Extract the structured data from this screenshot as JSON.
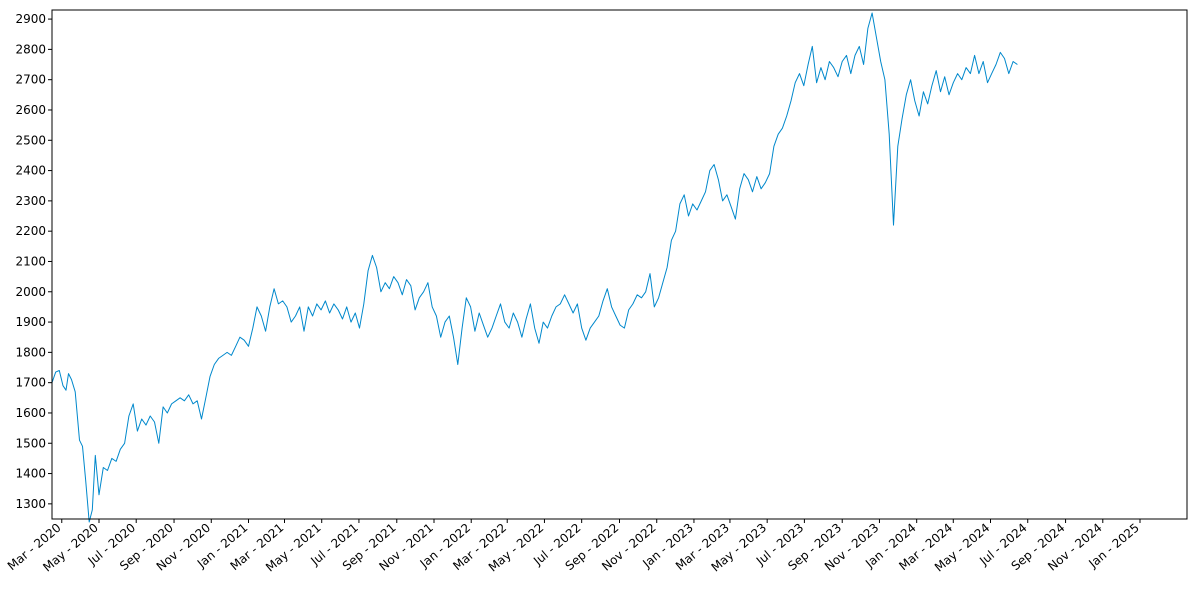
{
  "chart_data": {
    "type": "line",
    "title": "",
    "xlabel": "",
    "ylabel": "",
    "grid": false,
    "legend": "none",
    "line_color": "#0088cc",
    "xlim": [
      "2020-02-14",
      "2025-03-19"
    ],
    "ylim": [
      1250,
      2930
    ],
    "y_ticks": [
      1300,
      1400,
      1500,
      1600,
      1700,
      1800,
      1900,
      2000,
      2100,
      2200,
      2300,
      2400,
      2500,
      2600,
      2700,
      2800,
      2900
    ],
    "x_ticks": [
      {
        "date": "2020-03-01",
        "label": "Mar - 2020"
      },
      {
        "date": "2020-05-01",
        "label": "May - 2020"
      },
      {
        "date": "2020-07-01",
        "label": "Jul - 2020"
      },
      {
        "date": "2020-09-01",
        "label": "Sep - 2020"
      },
      {
        "date": "2020-11-01",
        "label": "Nov - 2020"
      },
      {
        "date": "2021-01-01",
        "label": "Jan - 2021"
      },
      {
        "date": "2021-03-01",
        "label": "Mar - 2021"
      },
      {
        "date": "2021-05-01",
        "label": "May - 2021"
      },
      {
        "date": "2021-07-01",
        "label": "Jul - 2021"
      },
      {
        "date": "2021-09-01",
        "label": "Sep - 2021"
      },
      {
        "date": "2021-11-01",
        "label": "Nov - 2021"
      },
      {
        "date": "2022-01-01",
        "label": "Jan - 2022"
      },
      {
        "date": "2022-03-01",
        "label": "Mar - 2022"
      },
      {
        "date": "2022-05-01",
        "label": "May - 2022"
      },
      {
        "date": "2022-07-01",
        "label": "Jul - 2022"
      },
      {
        "date": "2022-09-01",
        "label": "Sep - 2022"
      },
      {
        "date": "2022-11-01",
        "label": "Nov - 2022"
      },
      {
        "date": "2023-01-01",
        "label": "Jan - 2023"
      },
      {
        "date": "2023-03-01",
        "label": "Mar - 2023"
      },
      {
        "date": "2023-05-01",
        "label": "May - 2023"
      },
      {
        "date": "2023-07-01",
        "label": "Jul - 2023"
      },
      {
        "date": "2023-09-01",
        "label": "Sep - 2023"
      },
      {
        "date": "2023-11-01",
        "label": "Nov - 2023"
      },
      {
        "date": "2024-01-01",
        "label": "Jan - 2024"
      },
      {
        "date": "2024-03-01",
        "label": "Mar - 2024"
      },
      {
        "date": "2024-05-01",
        "label": "May - 2024"
      },
      {
        "date": "2024-07-01",
        "label": "Jul - 2024"
      },
      {
        "date": "2024-09-01",
        "label": "Sep - 2024"
      },
      {
        "date": "2024-11-01",
        "label": "Nov - 2024"
      },
      {
        "date": "2025-01-01",
        "label": "Jan - 2025"
      }
    ],
    "series": [
      {
        "points": [
          [
            "2020-02-14",
            1700
          ],
          [
            "2020-02-20",
            1735
          ],
          [
            "2020-02-26",
            1740
          ],
          [
            "2020-03-03",
            1690
          ],
          [
            "2020-03-08",
            1675
          ],
          [
            "2020-03-12",
            1730
          ],
          [
            "2020-03-17",
            1710
          ],
          [
            "2020-03-23",
            1670
          ],
          [
            "2020-03-30",
            1510
          ],
          [
            "2020-04-04",
            1490
          ],
          [
            "2020-04-09",
            1380
          ],
          [
            "2020-04-15",
            1240
          ],
          [
            "2020-04-20",
            1280
          ],
          [
            "2020-04-25",
            1460
          ],
          [
            "2020-05-01",
            1330
          ],
          [
            "2020-05-08",
            1420
          ],
          [
            "2020-05-15",
            1410
          ],
          [
            "2020-05-22",
            1450
          ],
          [
            "2020-05-29",
            1440
          ],
          [
            "2020-06-05",
            1480
          ],
          [
            "2020-06-12",
            1500
          ],
          [
            "2020-06-19",
            1590
          ],
          [
            "2020-06-26",
            1630
          ],
          [
            "2020-07-03",
            1540
          ],
          [
            "2020-07-10",
            1580
          ],
          [
            "2020-07-17",
            1560
          ],
          [
            "2020-07-24",
            1590
          ],
          [
            "2020-07-31",
            1570
          ],
          [
            "2020-08-07",
            1500
          ],
          [
            "2020-08-14",
            1620
          ],
          [
            "2020-08-21",
            1600
          ],
          [
            "2020-08-28",
            1630
          ],
          [
            "2020-09-04",
            1640
          ],
          [
            "2020-09-11",
            1650
          ],
          [
            "2020-09-18",
            1640
          ],
          [
            "2020-09-25",
            1660
          ],
          [
            "2020-10-02",
            1630
          ],
          [
            "2020-10-09",
            1640
          ],
          [
            "2020-10-16",
            1580
          ],
          [
            "2020-10-23",
            1650
          ],
          [
            "2020-10-30",
            1720
          ],
          [
            "2020-11-06",
            1760
          ],
          [
            "2020-11-13",
            1780
          ],
          [
            "2020-11-20",
            1790
          ],
          [
            "2020-11-27",
            1800
          ],
          [
            "2020-12-04",
            1790
          ],
          [
            "2020-12-11",
            1820
          ],
          [
            "2020-12-18",
            1850
          ],
          [
            "2020-12-25",
            1840
          ],
          [
            "2021-01-01",
            1820
          ],
          [
            "2021-01-08",
            1880
          ],
          [
            "2021-01-15",
            1950
          ],
          [
            "2021-01-22",
            1920
          ],
          [
            "2021-01-29",
            1870
          ],
          [
            "2021-02-05",
            1950
          ],
          [
            "2021-02-12",
            2010
          ],
          [
            "2021-02-19",
            1960
          ],
          [
            "2021-02-26",
            1970
          ],
          [
            "2021-03-05",
            1950
          ],
          [
            "2021-03-12",
            1900
          ],
          [
            "2021-03-19",
            1920
          ],
          [
            "2021-03-26",
            1950
          ],
          [
            "2021-04-02",
            1870
          ],
          [
            "2021-04-09",
            1950
          ],
          [
            "2021-04-16",
            1920
          ],
          [
            "2021-04-23",
            1960
          ],
          [
            "2021-04-30",
            1940
          ],
          [
            "2021-05-07",
            1970
          ],
          [
            "2021-05-14",
            1930
          ],
          [
            "2021-05-21",
            1960
          ],
          [
            "2021-05-28",
            1940
          ],
          [
            "2021-06-04",
            1910
          ],
          [
            "2021-06-11",
            1950
          ],
          [
            "2021-06-18",
            1900
          ],
          [
            "2021-06-25",
            1930
          ],
          [
            "2021-07-02",
            1880
          ],
          [
            "2021-07-09",
            1960
          ],
          [
            "2021-07-16",
            2070
          ],
          [
            "2021-07-23",
            2120
          ],
          [
            "2021-07-30",
            2080
          ],
          [
            "2021-08-06",
            2000
          ],
          [
            "2021-08-13",
            2030
          ],
          [
            "2021-08-20",
            2010
          ],
          [
            "2021-08-27",
            2050
          ],
          [
            "2021-09-03",
            2030
          ],
          [
            "2021-09-10",
            1990
          ],
          [
            "2021-09-17",
            2040
          ],
          [
            "2021-09-24",
            2020
          ],
          [
            "2021-10-01",
            1940
          ],
          [
            "2021-10-08",
            1980
          ],
          [
            "2021-10-15",
            2000
          ],
          [
            "2021-10-22",
            2030
          ],
          [
            "2021-10-29",
            1950
          ],
          [
            "2021-11-05",
            1920
          ],
          [
            "2021-11-12",
            1850
          ],
          [
            "2021-11-19",
            1900
          ],
          [
            "2021-11-26",
            1920
          ],
          [
            "2021-12-03",
            1850
          ],
          [
            "2021-12-10",
            1760
          ],
          [
            "2021-12-17",
            1880
          ],
          [
            "2021-12-24",
            1980
          ],
          [
            "2021-12-31",
            1950
          ],
          [
            "2022-01-07",
            1870
          ],
          [
            "2022-01-14",
            1930
          ],
          [
            "2022-01-21",
            1890
          ],
          [
            "2022-01-28",
            1850
          ],
          [
            "2022-02-04",
            1880
          ],
          [
            "2022-02-11",
            1920
          ],
          [
            "2022-02-18",
            1960
          ],
          [
            "2022-02-25",
            1900
          ],
          [
            "2022-03-04",
            1880
          ],
          [
            "2022-03-11",
            1930
          ],
          [
            "2022-03-18",
            1900
          ],
          [
            "2022-03-25",
            1850
          ],
          [
            "2022-04-01",
            1910
          ],
          [
            "2022-04-08",
            1960
          ],
          [
            "2022-04-15",
            1880
          ],
          [
            "2022-04-22",
            1830
          ],
          [
            "2022-04-29",
            1900
          ],
          [
            "2022-05-06",
            1880
          ],
          [
            "2022-05-13",
            1920
          ],
          [
            "2022-05-20",
            1950
          ],
          [
            "2022-05-27",
            1960
          ],
          [
            "2022-06-03",
            1990
          ],
          [
            "2022-06-10",
            1960
          ],
          [
            "2022-06-17",
            1930
          ],
          [
            "2022-06-24",
            1960
          ],
          [
            "2022-07-01",
            1880
          ],
          [
            "2022-07-08",
            1840
          ],
          [
            "2022-07-15",
            1880
          ],
          [
            "2022-07-22",
            1900
          ],
          [
            "2022-07-29",
            1920
          ],
          [
            "2022-08-05",
            1970
          ],
          [
            "2022-08-12",
            2010
          ],
          [
            "2022-08-19",
            1950
          ],
          [
            "2022-08-26",
            1920
          ],
          [
            "2022-09-02",
            1890
          ],
          [
            "2022-09-09",
            1880
          ],
          [
            "2022-09-16",
            1940
          ],
          [
            "2022-09-23",
            1960
          ],
          [
            "2022-09-30",
            1990
          ],
          [
            "2022-10-07",
            1980
          ],
          [
            "2022-10-14",
            2000
          ],
          [
            "2022-10-21",
            2060
          ],
          [
            "2022-10-28",
            1950
          ],
          [
            "2022-11-04",
            1980
          ],
          [
            "2022-11-11",
            2030
          ],
          [
            "2022-11-18",
            2080
          ],
          [
            "2022-11-25",
            2170
          ],
          [
            "2022-12-02",
            2200
          ],
          [
            "2022-12-09",
            2290
          ],
          [
            "2022-12-16",
            2320
          ],
          [
            "2022-12-23",
            2250
          ],
          [
            "2022-12-30",
            2290
          ],
          [
            "2023-01-06",
            2270
          ],
          [
            "2023-01-13",
            2300
          ],
          [
            "2023-01-20",
            2330
          ],
          [
            "2023-01-27",
            2400
          ],
          [
            "2023-02-03",
            2420
          ],
          [
            "2023-02-10",
            2370
          ],
          [
            "2023-02-17",
            2300
          ],
          [
            "2023-02-24",
            2320
          ],
          [
            "2023-03-03",
            2280
          ],
          [
            "2023-03-10",
            2240
          ],
          [
            "2023-03-17",
            2340
          ],
          [
            "2023-03-24",
            2390
          ],
          [
            "2023-03-31",
            2370
          ],
          [
            "2023-04-07",
            2330
          ],
          [
            "2023-04-14",
            2380
          ],
          [
            "2023-04-21",
            2340
          ],
          [
            "2023-04-28",
            2360
          ],
          [
            "2023-05-05",
            2390
          ],
          [
            "2023-05-12",
            2480
          ],
          [
            "2023-05-19",
            2520
          ],
          [
            "2023-05-26",
            2540
          ],
          [
            "2023-06-02",
            2580
          ],
          [
            "2023-06-09",
            2630
          ],
          [
            "2023-06-16",
            2690
          ],
          [
            "2023-06-23",
            2720
          ],
          [
            "2023-06-30",
            2680
          ],
          [
            "2023-07-07",
            2750
          ],
          [
            "2023-07-14",
            2810
          ],
          [
            "2023-07-21",
            2690
          ],
          [
            "2023-07-28",
            2740
          ],
          [
            "2023-08-04",
            2700
          ],
          [
            "2023-08-11",
            2760
          ],
          [
            "2023-08-18",
            2740
          ],
          [
            "2023-08-25",
            2710
          ],
          [
            "2023-09-01",
            2760
          ],
          [
            "2023-09-08",
            2780
          ],
          [
            "2023-09-15",
            2720
          ],
          [
            "2023-09-22",
            2780
          ],
          [
            "2023-09-29",
            2810
          ],
          [
            "2023-10-06",
            2750
          ],
          [
            "2023-10-13",
            2870
          ],
          [
            "2023-10-20",
            2920
          ],
          [
            "2023-10-27",
            2840
          ],
          [
            "2023-11-03",
            2760
          ],
          [
            "2023-11-10",
            2700
          ],
          [
            "2023-11-17",
            2520
          ],
          [
            "2023-11-24",
            2220
          ],
          [
            "2023-12-01",
            2480
          ],
          [
            "2023-12-08",
            2570
          ],
          [
            "2023-12-15",
            2650
          ],
          [
            "2023-12-22",
            2700
          ],
          [
            "2023-12-29",
            2630
          ],
          [
            "2024-01-05",
            2580
          ],
          [
            "2024-01-12",
            2660
          ],
          [
            "2024-01-19",
            2620
          ],
          [
            "2024-01-26",
            2680
          ],
          [
            "2024-02-02",
            2730
          ],
          [
            "2024-02-09",
            2660
          ],
          [
            "2024-02-16",
            2710
          ],
          [
            "2024-02-23",
            2650
          ],
          [
            "2024-03-01",
            2690
          ],
          [
            "2024-03-08",
            2720
          ],
          [
            "2024-03-15",
            2700
          ],
          [
            "2024-03-22",
            2740
          ],
          [
            "2024-03-29",
            2720
          ],
          [
            "2024-04-05",
            2780
          ],
          [
            "2024-04-12",
            2720
          ],
          [
            "2024-04-19",
            2760
          ],
          [
            "2024-04-26",
            2690
          ],
          [
            "2024-05-03",
            2720
          ],
          [
            "2024-05-10",
            2750
          ],
          [
            "2024-05-17",
            2790
          ],
          [
            "2024-05-24",
            2770
          ],
          [
            "2024-05-31",
            2720
          ],
          [
            "2024-06-07",
            2760
          ],
          [
            "2024-06-14",
            2750
          ]
        ]
      }
    ]
  }
}
